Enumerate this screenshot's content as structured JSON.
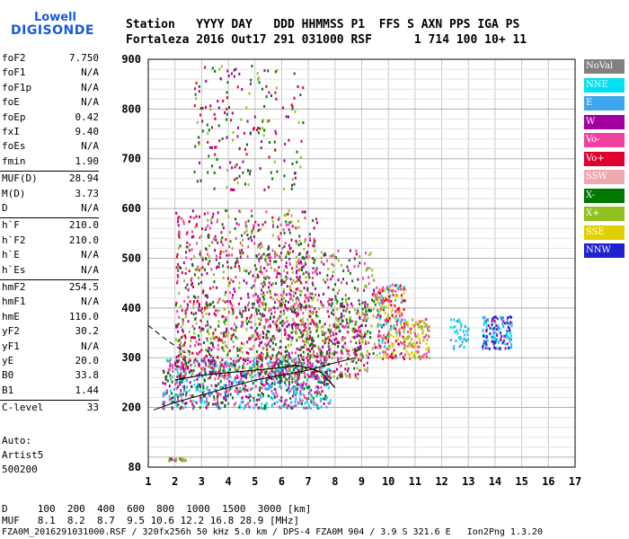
{
  "logo": {
    "line1": "Lowell",
    "line2": "DIGISONDE"
  },
  "header": {
    "row1": "Station   YYYY DAY   DDD HHMMSS P1  FFS S AXN PPS IGA PS",
    "row2": "Fortaleza 2016 Out17 291 031000 RSF      1 714 100 10+ 11"
  },
  "params": [
    {
      "name": "foF2",
      "value": "7.750"
    },
    {
      "name": "foF1",
      "value": "N/A"
    },
    {
      "name": "foF1p",
      "value": "N/A"
    },
    {
      "name": "foE",
      "value": "N/A"
    },
    {
      "name": "foEp",
      "value": "0.42"
    },
    {
      "name": "fxI",
      "value": "9.40"
    },
    {
      "name": "foEs",
      "value": "N/A"
    },
    {
      "name": "fmin",
      "value": "1.90"
    },
    {
      "name": "MUF(D)",
      "value": "28.94"
    },
    {
      "name": "M(D)",
      "value": "3.73"
    },
    {
      "name": "D",
      "value": "N/A"
    },
    {
      "name": "h`F",
      "value": "210.0"
    },
    {
      "name": "h`F2",
      "value": "210.0"
    },
    {
      "name": "h`E",
      "value": "N/A"
    },
    {
      "name": "h`Es",
      "value": "N/A"
    },
    {
      "name": "hmF2",
      "value": "254.5"
    },
    {
      "name": "hmF1",
      "value": "N/A"
    },
    {
      "name": "hmE",
      "value": "110.0"
    },
    {
      "name": "yF2",
      "value": "30.2"
    },
    {
      "name": "yF1",
      "value": "N/A"
    },
    {
      "name": "yE",
      "value": "20.0"
    },
    {
      "name": "B0",
      "value": "33.8"
    },
    {
      "name": "B1",
      "value": "1.44"
    },
    {
      "name": "C-level",
      "value": "33"
    }
  ],
  "auto": {
    "line1": "Auto:",
    "line2": "Artist5",
    "line3": "500200"
  },
  "legend": [
    {
      "label": "NoVal",
      "color": "#808080"
    },
    {
      "label": "NNE",
      "color": "#00e0f0"
    },
    {
      "label": "E",
      "color": "#3da6f0"
    },
    {
      "label": "W",
      "color": "#a000a0"
    },
    {
      "label": "Vo-",
      "color": "#f040a0"
    },
    {
      "label": "Vo+",
      "color": "#e00030"
    },
    {
      "label": "SSW",
      "color": "#f0a8b0"
    },
    {
      "label": "X-",
      "color": "#007800"
    },
    {
      "label": "X+",
      "color": "#90c020"
    },
    {
      "label": "SSE",
      "color": "#e0d000"
    },
    {
      "label": "NNW",
      "color": "#2020d0"
    }
  ],
  "footer": {
    "line1": "D     100  200  400  600  800  1000  1500  3000 [km]",
    "line2": "MUF   8.1  8.2  8.7  9.5 10.6 12.2 16.8 28.9 [MHz]",
    "line3": "FZA0M_2016291031000.RSF / 320fx256h 50 kHz 5.0 km / DPS-4 FZA0M 904 / 3.9 S 321.6 E   Ion2Png 1.3.20"
  },
  "chart_data": {
    "type": "scatter",
    "xlim": [
      1,
      17
    ],
    "ylim": [
      80,
      900
    ],
    "xticks": [
      "1",
      "2",
      "3",
      "4",
      "5",
      "6",
      "7",
      "8",
      "9",
      "10",
      "11",
      "12",
      "13",
      "14",
      "15",
      "16",
      "17"
    ],
    "yticks": [
      "80",
      "200",
      "300",
      "400",
      "500",
      "600",
      "700",
      "800",
      "900"
    ],
    "grid": true,
    "clusters": [
      {
        "x": [
          1.5,
          7.8
        ],
        "y": [
          200,
          300
        ],
        "n": 900,
        "colors": [
          "#f040a0",
          "#a000a0",
          "#3da6f0",
          "#00e0f0",
          "#007800"
        ]
      },
      {
        "x": [
          2,
          9.2
        ],
        "y": [
          260,
          420
        ],
        "n": 900,
        "colors": [
          "#f040a0",
          "#a000a0",
          "#e00030",
          "#007800",
          "#90c020"
        ]
      },
      {
        "x": [
          5,
          9.5
        ],
        "y": [
          300,
          520
        ],
        "n": 500,
        "colors": [
          "#a000a0",
          "#007800",
          "#f040a0",
          "#90c020"
        ]
      },
      {
        "x": [
          9.5,
          10.6
        ],
        "y": [
          300,
          450
        ],
        "n": 260,
        "colors": [
          "#00e0f0",
          "#e00030",
          "#f040a0",
          "#e0d000"
        ]
      },
      {
        "x": [
          10.5,
          11.5
        ],
        "y": [
          300,
          380
        ],
        "n": 120,
        "colors": [
          "#e0d000",
          "#f040a0",
          "#90c020"
        ]
      },
      {
        "x": [
          12.3,
          13
        ],
        "y": [
          320,
          380
        ],
        "n": 40,
        "colors": [
          "#00e0f0",
          "#3da6f0"
        ]
      },
      {
        "x": [
          13.5,
          14.6
        ],
        "y": [
          320,
          385
        ],
        "n": 140,
        "colors": [
          "#00e0f0",
          "#3da6f0",
          "#2020d0",
          "#a000a0"
        ]
      },
      {
        "x": [
          2,
          7.3
        ],
        "y": [
          420,
          600
        ],
        "n": 420,
        "colors": [
          "#e00030",
          "#007800",
          "#90c020",
          "#f040a0",
          "#a000a0"
        ]
      },
      {
        "x": [
          2.7,
          6.8
        ],
        "y": [
          640,
          890
        ],
        "n": 200,
        "colors": [
          "#e00030",
          "#007800",
          "#90c020",
          "#a000a0"
        ]
      },
      {
        "x": [
          1.6,
          2.4
        ],
        "y": [
          95,
          100
        ],
        "n": 20,
        "colors": [
          "#007800",
          "#f040a0",
          "#90c020"
        ]
      }
    ],
    "profile_solid": {
      "x": [
        1.2,
        2,
        3,
        4,
        5,
        6,
        7,
        8,
        8.8
      ],
      "y": [
        195,
        210,
        225,
        240,
        255,
        265,
        275,
        290,
        300
      ]
    },
    "profile_dashed": {
      "x": [
        1,
        1.7,
        2.4
      ],
      "y": [
        365,
        335,
        310
      ]
    },
    "trace": {
      "x": [
        2,
        3,
        4,
        5,
        6,
        6.5,
        7,
        7.5,
        8
      ],
      "y": [
        255,
        265,
        270,
        275,
        280,
        285,
        280,
        270,
        240
      ]
    }
  }
}
